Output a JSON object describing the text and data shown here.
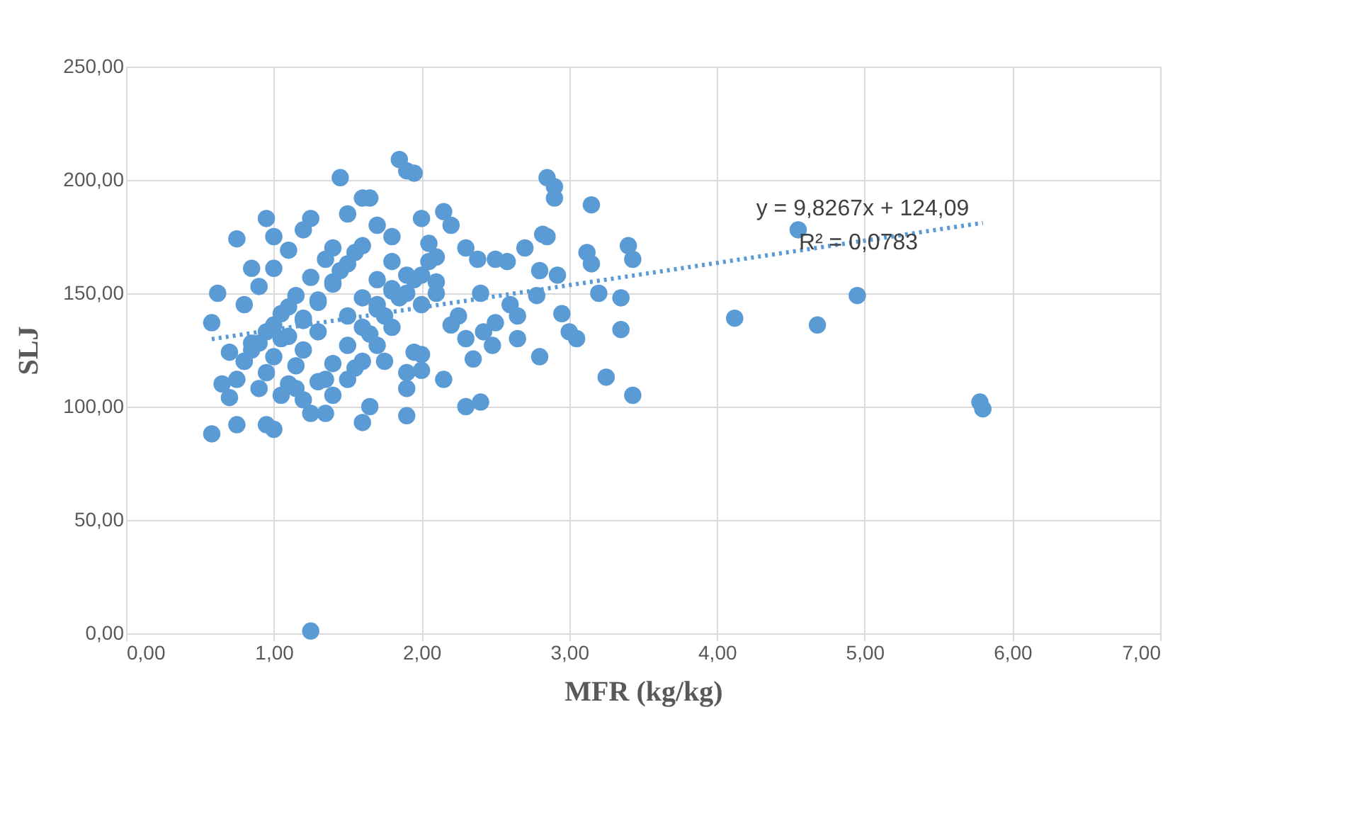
{
  "chart_data": {
    "type": "scatter",
    "xlabel": "MFR (kg/kg)",
    "ylabel": "SLJ",
    "xlim": [
      0,
      7
    ],
    "ylim": [
      0,
      250
    ],
    "xticks": [
      {
        "value": 0,
        "label": "0,00"
      },
      {
        "value": 1,
        "label": "1,00"
      },
      {
        "value": 2,
        "label": "2,00"
      },
      {
        "value": 3,
        "label": "3,00"
      },
      {
        "value": 4,
        "label": "4,00"
      },
      {
        "value": 5,
        "label": "5,00"
      },
      {
        "value": 6,
        "label": "6,00"
      },
      {
        "value": 7,
        "label": "7,00"
      }
    ],
    "yticks": [
      {
        "value": 0,
        "label": "0,00"
      },
      {
        "value": 50,
        "label": "50,00"
      },
      {
        "value": 100,
        "label": "100,00"
      },
      {
        "value": 150,
        "label": "150,00"
      },
      {
        "value": 200,
        "label": "200,00"
      },
      {
        "value": 250,
        "label": "250,00"
      }
    ],
    "grid": true,
    "marker": "circle",
    "annotations": [
      "y = 9,8267x + 124,09",
      "R² = 0,0783"
    ],
    "series": [
      {
        "color": "#5b9bd5",
        "x": [
          1.25,
          5.78,
          5.8,
          4.95,
          4.68,
          4.55,
          4.12,
          3.43,
          3.25,
          3.4,
          3.43,
          3.35,
          3.35,
          3.2,
          3.15,
          3.15,
          3.12,
          3.05,
          3.0,
          2.95,
          2.92,
          2.9,
          2.9,
          2.85,
          2.85,
          2.82,
          2.8,
          2.8,
          2.78,
          2.7,
          2.65,
          2.65,
          2.6,
          2.58,
          2.5,
          2.5,
          2.48,
          2.42,
          2.4,
          2.38,
          2.35,
          2.3,
          2.3,
          2.2,
          2.2,
          2.15,
          2.15,
          2.1,
          2.05,
          2.0,
          1.95,
          1.9,
          1.85,
          1.45,
          1.6,
          1.65,
          0.95,
          1.25,
          0.85,
          0.62,
          0.58,
          0.58,
          0.65,
          0.75,
          0.95,
          1.0,
          1.25,
          1.35,
          1.6,
          1.9,
          1.65,
          1.0,
          1.2,
          1.5,
          1.7,
          1.4,
          1.8,
          0.7,
          0.75,
          0.8,
          0.85,
          0.9,
          0.95,
          1.0,
          1.05,
          1.1,
          1.15,
          1.2,
          1.3,
          1.4,
          1.5,
          1.6,
          1.7,
          1.8,
          1.9,
          2.0,
          0.7,
          0.8,
          0.9,
          1.0,
          1.1,
          1.2,
          1.3,
          1.4,
          1.5,
          1.6,
          1.7,
          1.8,
          1.9,
          2.0,
          2.1,
          0.75,
          0.85,
          0.95,
          1.05,
          1.15,
          1.25,
          1.35,
          1.45,
          1.55,
          1.65,
          1.75,
          1.85,
          1.95,
          2.05,
          0.8,
          0.9,
          1.0,
          1.1,
          1.2,
          1.3,
          1.4,
          1.5,
          1.6,
          1.7,
          1.8,
          1.9,
          2.0,
          1.1,
          1.2,
          1.3,
          1.4,
          1.5,
          1.6,
          1.7,
          1.8,
          1.9,
          2.0,
          2.1,
          2.25,
          2.3,
          2.4,
          1.05,
          1.15,
          1.35,
          1.55,
          1.75,
          1.95
        ],
        "values": [
          1,
          102,
          99,
          149,
          136,
          178,
          139,
          105,
          113,
          171,
          165,
          148,
          134,
          150,
          163,
          189,
          168,
          130,
          133,
          141,
          158,
          192,
          197,
          201,
          175,
          176,
          160,
          122,
          149,
          170,
          140,
          130,
          145,
          164,
          165,
          137,
          127,
          133,
          150,
          165,
          121,
          170,
          130,
          136,
          180,
          186,
          112,
          150,
          172,
          183,
          203,
          204,
          209,
          201,
          192,
          192,
          183,
          183,
          161,
          150,
          137,
          88,
          110,
          92,
          92,
          90,
          97,
          97,
          93,
          96,
          100,
          175,
          178,
          185,
          180,
          170,
          175,
          104,
          112,
          120,
          128,
          108,
          115,
          122,
          130,
          110,
          118,
          125,
          133,
          105,
          112,
          120,
          127,
          135,
          108,
          116,
          124,
          120,
          128,
          136,
          144,
          138,
          146,
          154,
          140,
          148,
          156,
          164,
          150,
          158,
          166,
          174,
          125,
          133,
          141,
          149,
          157,
          165,
          160,
          168,
          132,
          140,
          148,
          156,
          164,
          145,
          153,
          161,
          169,
          103,
          111,
          119,
          127,
          135,
          143,
          151,
          115,
          123,
          131,
          139,
          147,
          155,
          163,
          171,
          145,
          152,
          158,
          145,
          155,
          140,
          100,
          102,
          105,
          108,
          112,
          117,
          120,
          124
        ]
      },
      {
        "type": "line",
        "color": "#5b9bd5",
        "line_style": "dotted",
        "marker": "none",
        "x": [
          0.58,
          5.8
        ],
        "values": [
          129.79,
          181.08
        ]
      }
    ]
  }
}
